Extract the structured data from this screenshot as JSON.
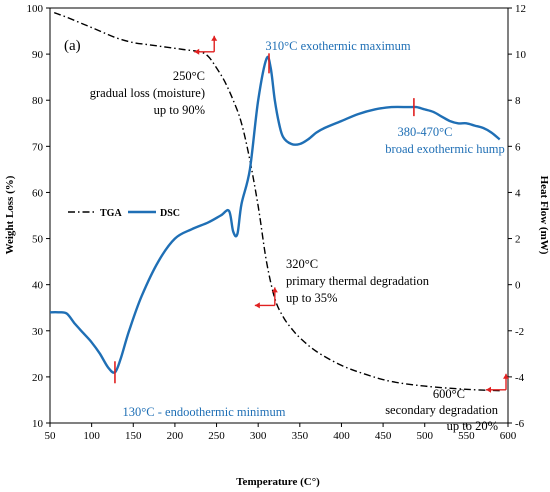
{
  "chart_data": {
    "type": "line",
    "panel_label": "(a)",
    "xlabel": "Temperature (C°)",
    "ylabel_left": "Weight Loss (%)",
    "ylabel_right": "Heat Flow (mW)",
    "xlim": [
      50,
      600
    ],
    "ylim_left": [
      10,
      100
    ],
    "ylim_right": [
      -6,
      12
    ],
    "x_ticks": [
      50,
      100,
      150,
      200,
      250,
      300,
      350,
      400,
      450,
      500,
      550,
      600
    ],
    "y_left_ticks": [
      10,
      20,
      30,
      40,
      50,
      60,
      70,
      80,
      90,
      100
    ],
    "y_right_ticks": [
      -6,
      -4,
      -2,
      0,
      2,
      4,
      6,
      8,
      10,
      12
    ],
    "grid": false,
    "legend": {
      "placement": "middle-left",
      "entries": [
        "TGA",
        "DSC"
      ]
    },
    "series": [
      {
        "name": "TGA",
        "axis": "left",
        "style": "dash-dot",
        "color": "#000000",
        "x": [
          55,
          70,
          90,
          110,
          130,
          150,
          170,
          190,
          210,
          230,
          240,
          250,
          260,
          270,
          280,
          290,
          300,
          310,
          320,
          330,
          340,
          350,
          370,
          400,
          430,
          460,
          500,
          550,
          590
        ],
        "y": [
          99,
          98,
          96.5,
          95,
          93.5,
          92.5,
          92,
          91.5,
          91,
          90.5,
          89.5,
          87,
          84,
          80,
          75,
          67,
          57,
          45,
          37,
          33,
          30.5,
          28.5,
          25.5,
          22.5,
          20.5,
          19,
          18,
          17.3,
          17
        ]
      },
      {
        "name": "DSC",
        "axis": "right",
        "style": "solid",
        "color": "#1f6fb5",
        "x": [
          50,
          60,
          70,
          80,
          90,
          100,
          110,
          120,
          128,
          135,
          145,
          160,
          180,
          200,
          220,
          240,
          255,
          265,
          270,
          275,
          280,
          290,
          300,
          310,
          315,
          320,
          325,
          330,
          340,
          350,
          360,
          370,
          380,
          400,
          420,
          440,
          460,
          480,
          490,
          500,
          510,
          520,
          530,
          540,
          550,
          560,
          570,
          580,
          590
        ],
        "y": [
          -1.2,
          -1.2,
          -1.25,
          -1.7,
          -2.1,
          -2.5,
          -3.0,
          -3.6,
          -3.8,
          -3.2,
          -2.0,
          -0.5,
          1.0,
          2.0,
          2.4,
          2.7,
          3.0,
          3.2,
          2.3,
          2.2,
          3.5,
          5.0,
          8.0,
          9.8,
          9.4,
          8.0,
          7.0,
          6.4,
          6.1,
          6.1,
          6.3,
          6.6,
          6.8,
          7.1,
          7.4,
          7.6,
          7.7,
          7.7,
          7.7,
          7.6,
          7.5,
          7.3,
          7.1,
          7.0,
          7.0,
          6.9,
          6.8,
          6.6,
          6.3
        ]
      }
    ],
    "annotations": [
      {
        "id": "a250",
        "color": "#000000",
        "lines": [
          "250°C",
          "gradual loss (moisture)",
          "up to 90%"
        ]
      },
      {
        "id": "a310",
        "color": "#1f6fb5",
        "lines": [
          "310°C  exothermic maximum"
        ]
      },
      {
        "id": "a380",
        "color": "#1f6fb5",
        "lines": [
          "380-470°C",
          "broad exothermic hump"
        ]
      },
      {
        "id": "a320",
        "color": "#000000",
        "lines": [
          "320°C",
          "primary thermal degradation",
          "up to 35%"
        ]
      },
      {
        "id": "a130",
        "color": "#1f6fb5",
        "lines": [
          "130°C - endoothermic minimum"
        ]
      },
      {
        "id": "a600",
        "color": "#000000",
        "lines": [
          "600°C",
          "secondary degradation",
          "up to 20%"
        ]
      }
    ]
  }
}
